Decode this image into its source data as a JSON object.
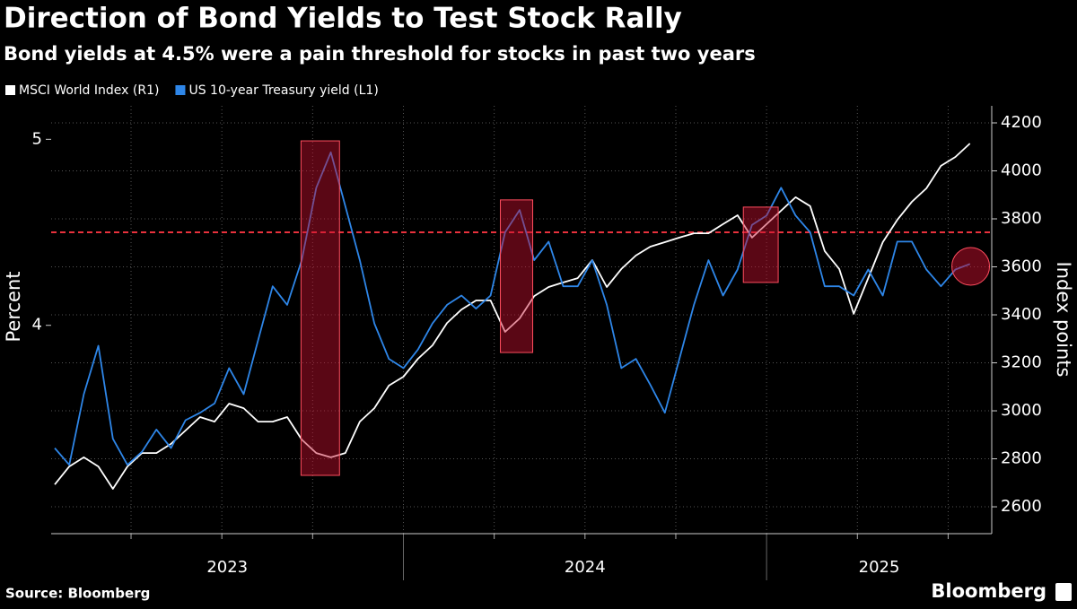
{
  "chart_data": {
    "type": "line",
    "title": "Direction of Bond Yields to Test Stock Rally",
    "subtitle": "Bond yields at 4.5% were a pain threshold for stocks in past two years",
    "ylabel": "Percent",
    "y2label": "Index points",
    "source": "Source: Bloomberg",
    "brand": "Bloomberg",
    "x": [
      2023.04,
      2023.08,
      2023.12,
      2023.16,
      2023.2,
      2023.24,
      2023.28,
      2023.32,
      2023.36,
      2023.4,
      2023.44,
      2023.48,
      2023.52,
      2023.56,
      2023.6,
      2023.64,
      2023.68,
      2023.72,
      2023.76,
      2023.8,
      2023.84,
      2023.88,
      2023.92,
      2023.96,
      2024.0,
      2024.04,
      2024.08,
      2024.12,
      2024.16,
      2024.2,
      2024.24,
      2024.28,
      2024.32,
      2024.36,
      2024.4,
      2024.44,
      2024.48,
      2024.52,
      2024.56,
      2024.6,
      2024.64,
      2024.68,
      2024.72,
      2024.76,
      2024.8,
      2024.84,
      2024.88,
      2024.92,
      2024.96,
      2025.0,
      2025.04,
      2025.08,
      2025.12,
      2025.16,
      2025.2,
      2025.24,
      2025.28,
      2025.32,
      2025.36,
      2025.4,
      2025.44,
      2025.48,
      2025.52,
      2025.56
    ],
    "series": [
      {
        "name": "MSCI World Index (R1)",
        "color": "#ffffff",
        "axis": "y2",
        "values": [
          2693,
          2768,
          2806,
          2768,
          2675,
          2768,
          2824,
          2824,
          2862,
          2918,
          2974,
          2955,
          3030,
          3011,
          2955,
          2955,
          2974,
          2880,
          2824,
          2806,
          2824,
          2955,
          3011,
          3105,
          3142,
          3217,
          3273,
          3366,
          3422,
          3460,
          3460,
          3329,
          3385,
          3478,
          3516,
          3535,
          3553,
          3628,
          3516,
          3591,
          3647,
          3684,
          3703,
          3722,
          3740,
          3740,
          3778,
          3815,
          3722,
          3778,
          3834,
          3890,
          3853,
          3666,
          3591,
          3404,
          3553,
          3703,
          3796,
          3871,
          3927,
          4021,
          4058,
          4114
        ]
      },
      {
        "name": "US 10-year Treasury yield (L1)",
        "color": "#2e86e8",
        "values": [
          3.34,
          3.25,
          3.63,
          3.89,
          3.39,
          3.25,
          3.32,
          3.44,
          3.34,
          3.49,
          3.53,
          3.58,
          3.77,
          3.63,
          3.92,
          4.21,
          4.11,
          4.35,
          4.74,
          4.93,
          4.64,
          4.35,
          4.01,
          3.82,
          3.77,
          3.87,
          4.01,
          4.11,
          4.16,
          4.09,
          4.16,
          4.5,
          4.62,
          4.35,
          4.45,
          4.21,
          4.21,
          4.35,
          4.11,
          3.77,
          3.82,
          3.68,
          3.53,
          3.82,
          4.11,
          4.35,
          4.16,
          4.3,
          4.54,
          4.59,
          4.74,
          4.59,
          4.5,
          4.21,
          4.21,
          4.16,
          4.3,
          4.16,
          4.45,
          4.45,
          4.3,
          4.21,
          4.3,
          4.33
        ]
      }
    ],
    "xlim": [
      2023.03,
      2025.62
    ],
    "xticks": [
      {
        "value": 2023.515,
        "label": "2023"
      },
      {
        "value": 2024.5,
        "label": "2024"
      },
      {
        "value": 2025.31,
        "label": "2025"
      }
    ],
    "xminorticks": [
      2023.25,
      2023.5,
      2023.75,
      2024,
      2024.25,
      2024.5,
      2024.75,
      2025,
      2025.25,
      2025.5
    ],
    "ylim": [
      2.88,
      5.18
    ],
    "yticks": [
      4,
      5
    ],
    "y2lim": [
      2488,
      4271
    ],
    "y2ticks": [
      2600,
      2800,
      3000,
      3200,
      3400,
      3600,
      3800,
      4000,
      4200
    ],
    "grid": true,
    "threshold": 4.5,
    "threshold_color": "#e8313c",
    "highlights": [
      {
        "x": [
          2023.718,
          2023.824
        ],
        "y2": [
          2731,
          4125
        ]
      },
      {
        "x": [
          2024.267,
          2024.356
        ],
        "y2": [
          3243,
          3879
        ]
      },
      {
        "x": [
          2024.936,
          2025.032
        ],
        "y2": [
          3535,
          3849
        ]
      }
    ],
    "highlight_point": {
      "x": 2025.562,
      "y2": 3602
    },
    "highlight_color": "#c8102e"
  }
}
